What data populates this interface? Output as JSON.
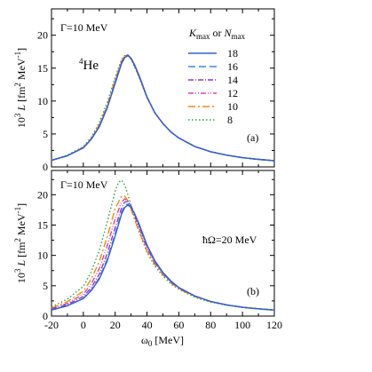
{
  "chart_data": [
    {
      "panel": "top",
      "type": "line",
      "xlim": [
        -20,
        120
      ],
      "ylim": [
        0,
        24
      ],
      "xticks": [
        -20,
        0,
        20,
        40,
        60,
        80,
        100,
        120
      ],
      "yticks": [
        0,
        5,
        10,
        15,
        20
      ],
      "xlabel": "ω0 [MeV]",
      "ylabel": "10^3 L [fm^2 MeV^-1]",
      "annotations": {
        "gamma": "Γ=10 MeV",
        "nucleus": "4He",
        "panel_label": "(a)"
      },
      "legend": {
        "title": "Kmax or Nmax",
        "position": "top-right"
      },
      "series": [
        {
          "name": "18",
          "color": "#3060d0",
          "dash": "solid",
          "x": [
            -20,
            -10,
            0,
            5,
            10,
            15,
            20,
            24,
            26,
            28,
            30,
            32,
            35,
            40,
            45,
            50,
            55,
            60,
            70,
            80,
            90,
            100,
            110,
            120
          ],
          "y": [
            1.0,
            1.7,
            2.9,
            4.2,
            6.1,
            9.0,
            12.7,
            15.7,
            16.6,
            16.9,
            16.5,
            15.6,
            13.9,
            10.6,
            8.2,
            6.6,
            5.3,
            4.4,
            3.1,
            2.3,
            1.8,
            1.4,
            1.15,
            0.95
          ]
        },
        {
          "name": "16",
          "color": "#3a8ae0",
          "dash": "8,4",
          "x": [
            -20,
            -10,
            0,
            5,
            10,
            15,
            20,
            24,
            26,
            28,
            30,
            32,
            35,
            40,
            45,
            50,
            55,
            60,
            70,
            80,
            90,
            100,
            110,
            120
          ],
          "y": [
            1.0,
            1.7,
            2.9,
            4.2,
            6.1,
            9.0,
            12.7,
            15.7,
            16.6,
            16.9,
            16.5,
            15.6,
            13.9,
            10.6,
            8.2,
            6.6,
            5.3,
            4.4,
            3.1,
            2.3,
            1.8,
            1.4,
            1.15,
            0.95
          ]
        },
        {
          "name": "14",
          "color": "#8a3ad0",
          "dash": "6,2,1,2",
          "x": [
            -20,
            -10,
            0,
            5,
            10,
            15,
            20,
            24,
            26,
            28,
            30,
            32,
            35,
            40,
            45,
            50,
            55,
            60,
            70,
            80,
            90,
            100,
            110,
            120
          ],
          "y": [
            1.0,
            1.7,
            2.9,
            4.2,
            6.1,
            9.0,
            12.8,
            15.8,
            16.7,
            16.95,
            16.5,
            15.6,
            13.9,
            10.6,
            8.2,
            6.6,
            5.3,
            4.4,
            3.1,
            2.3,
            1.8,
            1.4,
            1.15,
            0.95
          ]
        },
        {
          "name": "12",
          "color": "#e040a0",
          "dash": "6,2,1,2,1,2",
          "x": [
            -20,
            -10,
            0,
            5,
            10,
            15,
            20,
            24,
            26,
            28,
            30,
            32,
            35,
            40,
            45,
            50,
            55,
            60,
            70,
            80,
            90,
            100,
            110,
            120
          ],
          "y": [
            1.0,
            1.7,
            2.9,
            4.2,
            6.2,
            9.1,
            12.9,
            15.9,
            16.8,
            17.0,
            16.5,
            15.5,
            13.8,
            10.6,
            8.2,
            6.6,
            5.3,
            4.4,
            3.1,
            2.3,
            1.8,
            1.4,
            1.15,
            0.95
          ]
        },
        {
          "name": "10",
          "color": "#f08a10",
          "dash": "8,3,2,3",
          "x": [
            -20,
            -10,
            0,
            5,
            10,
            15,
            20,
            24,
            26,
            28,
            30,
            32,
            35,
            40,
            45,
            50,
            55,
            60,
            70,
            80,
            90,
            100,
            110,
            120
          ],
          "y": [
            1.0,
            1.7,
            3.0,
            4.3,
            6.4,
            9.4,
            13.2,
            16.1,
            16.9,
            17.0,
            16.4,
            15.4,
            13.7,
            10.5,
            8.2,
            6.6,
            5.3,
            4.4,
            3.1,
            2.3,
            1.8,
            1.4,
            1.15,
            0.95
          ]
        },
        {
          "name": "8",
          "color": "#30a040",
          "dash": "1.5,2.5",
          "x": [
            -20,
            -10,
            0,
            5,
            10,
            15,
            20,
            24,
            26,
            28,
            30,
            32,
            35,
            40,
            45,
            50,
            55,
            60,
            70,
            80,
            90,
            100,
            110,
            120
          ],
          "y": [
            1.0,
            1.8,
            3.1,
            4.5,
            6.7,
            9.8,
            13.6,
            16.3,
            16.9,
            16.9,
            16.3,
            15.3,
            13.6,
            10.5,
            8.2,
            6.6,
            5.3,
            4.4,
            3.1,
            2.3,
            1.8,
            1.4,
            1.15,
            0.95
          ]
        }
      ]
    },
    {
      "panel": "bottom",
      "type": "line",
      "xlim": [
        -20,
        120
      ],
      "ylim": [
        0,
        24
      ],
      "xticks": [
        -20,
        0,
        20,
        40,
        60,
        80,
        100,
        120
      ],
      "yticks": [
        0,
        5,
        10,
        15,
        20
      ],
      "xlabel": "ω0 [MeV]",
      "ylabel": "10^3 L [fm^2 MeV^-1]",
      "annotations": {
        "gamma": "Γ=10 MeV",
        "hbar_omega": "ħΩ=20 MeV",
        "panel_label": "(b)"
      },
      "series": [
        {
          "name": "18",
          "color": "#3060d0",
          "dash": "solid",
          "x": [
            -20,
            -10,
            0,
            5,
            10,
            15,
            20,
            24,
            26,
            28,
            30,
            32,
            35,
            40,
            45,
            50,
            55,
            60,
            70,
            80,
            90,
            100,
            110,
            120
          ],
          "y": [
            1.0,
            1.7,
            2.9,
            4.2,
            6.1,
            9.1,
            13.2,
            16.8,
            17.9,
            18.3,
            17.9,
            17.0,
            15.2,
            11.7,
            9.1,
            7.2,
            5.8,
            4.7,
            3.3,
            2.4,
            1.85,
            1.45,
            1.2,
            1.0
          ]
        },
        {
          "name": "16",
          "color": "#3a8ae0",
          "dash": "8,4",
          "x": [
            -20,
            -10,
            0,
            5,
            10,
            15,
            20,
            24,
            26,
            28,
            30,
            32,
            35,
            40,
            45,
            50,
            55,
            60,
            70,
            80,
            90,
            100,
            110,
            120
          ],
          "y": [
            1.0,
            1.7,
            2.9,
            4.3,
            6.3,
            9.4,
            13.6,
            17.1,
            18.2,
            18.5,
            18.0,
            17.0,
            15.1,
            11.6,
            9.0,
            7.1,
            5.7,
            4.7,
            3.3,
            2.4,
            1.85,
            1.45,
            1.2,
            1.0
          ]
        },
        {
          "name": "14",
          "color": "#8a3ad0",
          "dash": "6,2,1,2",
          "x": [
            -20,
            -10,
            0,
            5,
            10,
            15,
            20,
            24,
            26,
            28,
            30,
            32,
            35,
            40,
            45,
            50,
            55,
            60,
            70,
            80,
            90,
            100,
            110,
            120
          ],
          "y": [
            1.1,
            1.9,
            3.2,
            4.7,
            6.9,
            10.3,
            14.6,
            17.8,
            18.8,
            18.9,
            18.2,
            16.9,
            14.9,
            11.4,
            8.9,
            7.1,
            5.7,
            4.7,
            3.3,
            2.4,
            1.85,
            1.45,
            1.2,
            1.0
          ]
        },
        {
          "name": "12",
          "color": "#e040a0",
          "dash": "6,2,1,2,1,2",
          "x": [
            -20,
            -10,
            0,
            5,
            10,
            15,
            20,
            24,
            26,
            28,
            30,
            32,
            35,
            40,
            45,
            50,
            55,
            60,
            70,
            80,
            90,
            100,
            110,
            120
          ],
          "y": [
            1.2,
            2.1,
            3.6,
            5.3,
            7.8,
            11.6,
            16.0,
            18.8,
            19.3,
            19.0,
            18.0,
            16.6,
            14.5,
            11.1,
            8.8,
            7.0,
            5.6,
            4.6,
            3.3,
            2.4,
            1.85,
            1.45,
            1.2,
            1.0
          ]
        },
        {
          "name": "10",
          "color": "#f08a10",
          "dash": "8,3,2,3",
          "x": [
            -20,
            -10,
            0,
            5,
            10,
            15,
            20,
            24,
            26,
            28,
            30,
            32,
            35,
            40,
            45,
            50,
            55,
            60,
            70,
            80,
            90,
            100,
            110,
            120
          ],
          "y": [
            1.3,
            2.4,
            4.1,
            6.1,
            9.0,
            13.1,
            17.7,
            19.8,
            19.8,
            19.0,
            17.6,
            16.1,
            13.9,
            10.7,
            8.5,
            6.8,
            5.5,
            4.5,
            3.2,
            2.4,
            1.85,
            1.45,
            1.2,
            1.0
          ]
        },
        {
          "name": "8",
          "color": "#30a040",
          "dash": "1.5,2.5",
          "x": [
            -20,
            -10,
            0,
            5,
            10,
            15,
            20,
            22,
            24,
            26,
            28,
            30,
            32,
            35,
            40,
            45,
            50,
            55,
            60,
            70,
            80,
            90,
            100,
            110,
            120
          ],
          "y": [
            1.5,
            2.8,
            4.9,
            7.3,
            10.8,
            15.5,
            20.6,
            22.0,
            22.4,
            21.6,
            20.0,
            18.2,
            16.3,
            13.9,
            10.5,
            8.2,
            6.6,
            5.3,
            4.4,
            3.1,
            2.3,
            1.8,
            1.4,
            1.15,
            0.95
          ]
        }
      ]
    }
  ]
}
